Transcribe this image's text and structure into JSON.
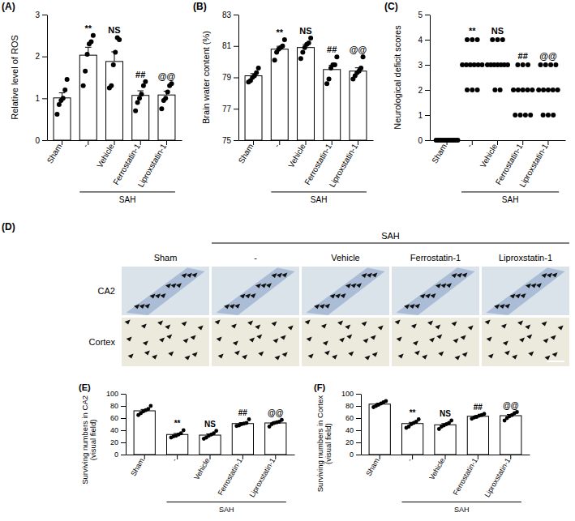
{
  "chart_data": [
    {
      "type": "bar",
      "panel_label": "(A)",
      "y_label": "Relative level of ROS",
      "categories": [
        "Sham",
        "-",
        "Vehicle",
        "Ferrostatin-1",
        "Liproxstatin-1"
      ],
      "group_label": "SAH",
      "values": [
        1.01,
        2.03,
        1.88,
        1.07,
        1.08
      ],
      "errors": [
        0.12,
        0.19,
        0.23,
        0.11,
        0.09
      ],
      "points": [
        [
          0.62,
          0.85,
          0.95,
          1.0,
          1.2,
          1.45
        ],
        [
          1.3,
          1.65,
          2.05,
          2.3,
          2.35,
          2.5
        ],
        [
          1.25,
          1.3,
          1.8,
          2.1,
          2.45,
          2.4
        ],
        [
          0.7,
          0.9,
          1.0,
          1.1,
          1.3,
          1.4
        ],
        [
          0.75,
          0.95,
          1.0,
          1.15,
          1.3,
          1.35
        ]
      ],
      "annotations": [
        null,
        "**",
        "NS",
        "##",
        "@@"
      ],
      "ylim": [
        0,
        3
      ],
      "yticks": [
        0,
        1,
        2,
        3
      ],
      "color": "#ffffff",
      "marker": "circle"
    },
    {
      "type": "bar",
      "panel_label": "(B)",
      "y_label": "Brain water content (%)",
      "categories": [
        "Sham",
        "-",
        "Vehicle",
        "Ferrostatin-1",
        "Liproxstatin-1"
      ],
      "group_label": "SAH",
      "values": [
        79.1,
        80.8,
        80.9,
        79.5,
        79.4
      ],
      "errors": [
        0.14,
        0.18,
        0.19,
        0.27,
        0.21
      ],
      "points": [
        [
          78.7,
          78.8,
          79.0,
          79.1,
          79.3,
          79.6
        ],
        [
          80.1,
          80.6,
          80.8,
          80.9,
          81.0,
          81.4
        ],
        [
          80.2,
          80.6,
          80.9,
          81.1,
          81.2,
          81.5
        ],
        [
          78.6,
          78.9,
          79.6,
          79.8,
          79.8,
          80.3
        ],
        [
          78.9,
          79.1,
          79.3,
          79.4,
          79.6,
          80.3
        ]
      ],
      "annotations": [
        null,
        "**",
        "NS",
        "##",
        "@@"
      ],
      "ylim": [
        75,
        83
      ],
      "yticks": [
        75,
        77,
        79,
        81,
        83
      ],
      "color": "#ffffff",
      "marker": "circle"
    },
    {
      "type": "scatter",
      "panel_label": "(C)",
      "y_label": "Neurological deficit scores",
      "categories": [
        "Sham",
        "-",
        "Vehicle",
        "Ferrostatin-1",
        "Liproxstatin-1"
      ],
      "group_label": "SAH",
      "values": [
        0,
        3,
        3,
        2,
        2
      ],
      "points": [
        [
          0,
          0,
          0,
          0,
          0,
          0,
          0,
          0,
          0,
          0,
          0,
          0
        ],
        [
          2,
          2,
          2,
          3,
          3,
          3,
          3,
          3,
          3,
          4,
          4,
          4
        ],
        [
          2,
          2,
          3,
          3,
          3,
          3,
          3,
          3,
          3,
          4,
          4,
          4
        ],
        [
          1,
          1,
          1,
          1,
          2,
          2,
          2,
          2,
          2,
          3,
          3,
          3
        ],
        [
          1,
          1,
          1,
          2,
          2,
          2,
          2,
          2,
          3,
          3,
          3,
          3
        ]
      ],
      "annotations": [
        null,
        "**",
        "NS",
        "##",
        "@@"
      ],
      "ylim": [
        0,
        5
      ],
      "yticks": [
        0,
        1,
        2,
        3,
        4,
        5
      ],
      "marker": "circle"
    },
    {
      "type": "bar",
      "panel_label": "(E)",
      "y_label": [
        "Surviving numbers in CA2",
        "(visual field)"
      ],
      "categories": [
        "Sham",
        "-",
        "Vehicle",
        "Ferrostatin-1",
        "Liproxstatin-1"
      ],
      "group_label": "SAH",
      "values": [
        72,
        33,
        32,
        51,
        52
      ],
      "errors": [
        2.2,
        1.7,
        1.9,
        1.6,
        1.6
      ],
      "points": [
        [
          65,
          68,
          71,
          73,
          75,
          80
        ],
        [
          28,
          30,
          31,
          33,
          35,
          40
        ],
        [
          26,
          28,
          31,
          33,
          35,
          39
        ],
        [
          47,
          48,
          50,
          51,
          52,
          58
        ],
        [
          46,
          50,
          52,
          53,
          54,
          57
        ]
      ],
      "annotations": [
        null,
        "**",
        "NS",
        "##",
        "@@"
      ],
      "ylim": [
        0,
        100
      ],
      "yticks": [
        0,
        20,
        40,
        60,
        80,
        100
      ],
      "color": "#ffffff",
      "marker": "circle"
    },
    {
      "type": "bar",
      "panel_label": "(F)",
      "y_label": [
        "Surviving numbers in Cortex",
        "(visual field)"
      ],
      "categories": [
        "Sham",
        "-",
        "Vehicle",
        "Ferrostatin-1",
        "Liproxstatin-1"
      ],
      "group_label": "SAH",
      "values": [
        83,
        51,
        49,
        63,
        64
      ],
      "errors": [
        1.5,
        2.0,
        1.9,
        1.2,
        2.0
      ],
      "points": [
        [
          78,
          80,
          82,
          84,
          86,
          88
        ],
        [
          44,
          46,
          50,
          52,
          54,
          58
        ],
        [
          42,
          46,
          48,
          50,
          52,
          56
        ],
        [
          59,
          61,
          62,
          64,
          65,
          67
        ],
        [
          56,
          60,
          63,
          65,
          68,
          70
        ]
      ],
      "annotations": [
        null,
        "**",
        "NS",
        "##",
        "@@"
      ],
      "ylim": [
        0,
        100
      ],
      "yticks": [
        0,
        20,
        40,
        60,
        80,
        100
      ],
      "color": "#ffffff",
      "marker": "circle"
    }
  ],
  "image_panel": {
    "panel_label": "(D)",
    "group_label": "SAH",
    "columns": [
      "Sham",
      "-",
      "Vehicle",
      "Ferrostatin-1",
      "Liproxstatin-1"
    ],
    "rows": [
      "CA2",
      "Cortex"
    ]
  }
}
